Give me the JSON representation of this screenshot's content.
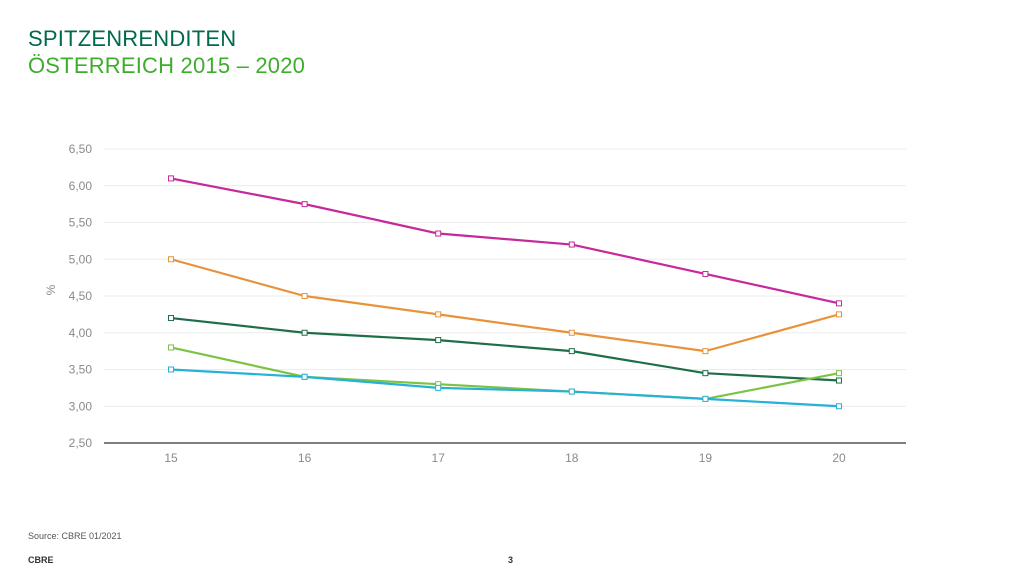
{
  "slide": {
    "title_line1": "SPITZENRENDITEN",
    "title_line2": "ÖSTERREICH 2015 – 2020",
    "source": "Source: CBRE 01/2021",
    "brand": "CBRE",
    "page_number": "3"
  },
  "colors": {
    "title_dark_green": "#006a4d",
    "title_light_green": "#3dae2b"
  },
  "chart_data": {
    "type": "line",
    "title": "",
    "xlabel": "",
    "ylabel": "%",
    "categories": [
      "15",
      "16",
      "17",
      "18",
      "19",
      "20"
    ],
    "yticks": [
      "2,50",
      "3,00",
      "3,50",
      "4,00",
      "4,50",
      "5,00",
      "5,50",
      "6,00",
      "6,50"
    ],
    "ylim": [
      2.5,
      6.5
    ],
    "grid": true,
    "legend": "none",
    "series": [
      {
        "color": "#c7289a",
        "values": [
          6.1,
          5.75,
          5.35,
          5.2,
          4.8,
          4.4
        ]
      },
      {
        "color": "#e8923a",
        "values": [
          5.0,
          4.5,
          4.25,
          4.0,
          3.75,
          4.25
        ]
      },
      {
        "color": "#1e6e4a",
        "values": [
          4.2,
          4.0,
          3.9,
          3.75,
          3.45,
          3.35
        ]
      },
      {
        "color": "#7cc243",
        "values": [
          3.8,
          3.4,
          3.3,
          3.2,
          3.1,
          3.45
        ]
      },
      {
        "color": "#27b1d6",
        "values": [
          3.5,
          3.4,
          3.25,
          3.2,
          3.1,
          3.0
        ]
      }
    ]
  }
}
